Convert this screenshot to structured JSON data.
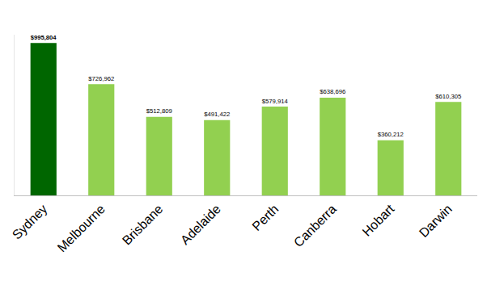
{
  "chart_data": {
    "type": "bar",
    "categories": [
      "Sydney",
      "Melbourne",
      "Brisbane",
      "Adelaide",
      "Perth",
      "Canberra",
      "Hobart",
      "Darwin"
    ],
    "values": [
      995804,
      726962,
      512809,
      491422,
      579914,
      638696,
      360212,
      610305
    ],
    "value_labels": [
      "$995,804",
      "$726,962",
      "$512,809",
      "$491,422",
      "$579,914",
      "$638,696",
      "$360,212",
      "$610,305"
    ],
    "colors": [
      "#006600",
      "#92d050",
      "#92d050",
      "#92d050",
      "#92d050",
      "#92d050",
      "#92d050",
      "#92d050"
    ],
    "data_labels": true,
    "ylim": [
      0,
      1050000
    ],
    "yticks": [],
    "grid": false,
    "tick_labels": "x"
  }
}
